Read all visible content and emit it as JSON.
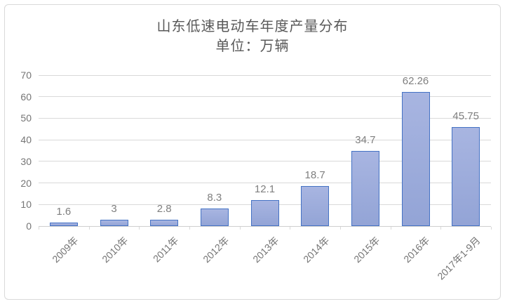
{
  "chart_data": {
    "type": "bar",
    "title": "山东低速电动车年度产量分布",
    "subtitle": "单位：万辆",
    "categories": [
      "2009年",
      "2010年",
      "2011年",
      "2012年",
      "2013年",
      "2014年",
      "2015年",
      "2016年",
      "2017年1-9月"
    ],
    "values": [
      1.6,
      3,
      2.8,
      8.3,
      12.1,
      18.7,
      34.7,
      62.26,
      45.75
    ],
    "data_labels": [
      "1.6",
      "3",
      "2.8",
      "8.3",
      "12.1",
      "18.7",
      "34.7",
      "62.26",
      "45.75"
    ],
    "xlabel": "",
    "ylabel": "",
    "ylim": [
      0,
      70
    ],
    "yticks": [
      0,
      10,
      20,
      30,
      40,
      50,
      60,
      70
    ],
    "grid": true,
    "legend": "none",
    "colors": {
      "bar_fill_top": "#A8B5E1",
      "bar_fill_bottom": "#93A4D6",
      "bar_border": "#4472C4",
      "gridline": "#D9D9D9",
      "axis_line": "#CFCFCF",
      "axis_text": "#757575",
      "data_label_text": "#7F7F7F",
      "title_text": "#595959",
      "card_border": "#D9D9D9",
      "background": "#FFFFFF"
    }
  }
}
